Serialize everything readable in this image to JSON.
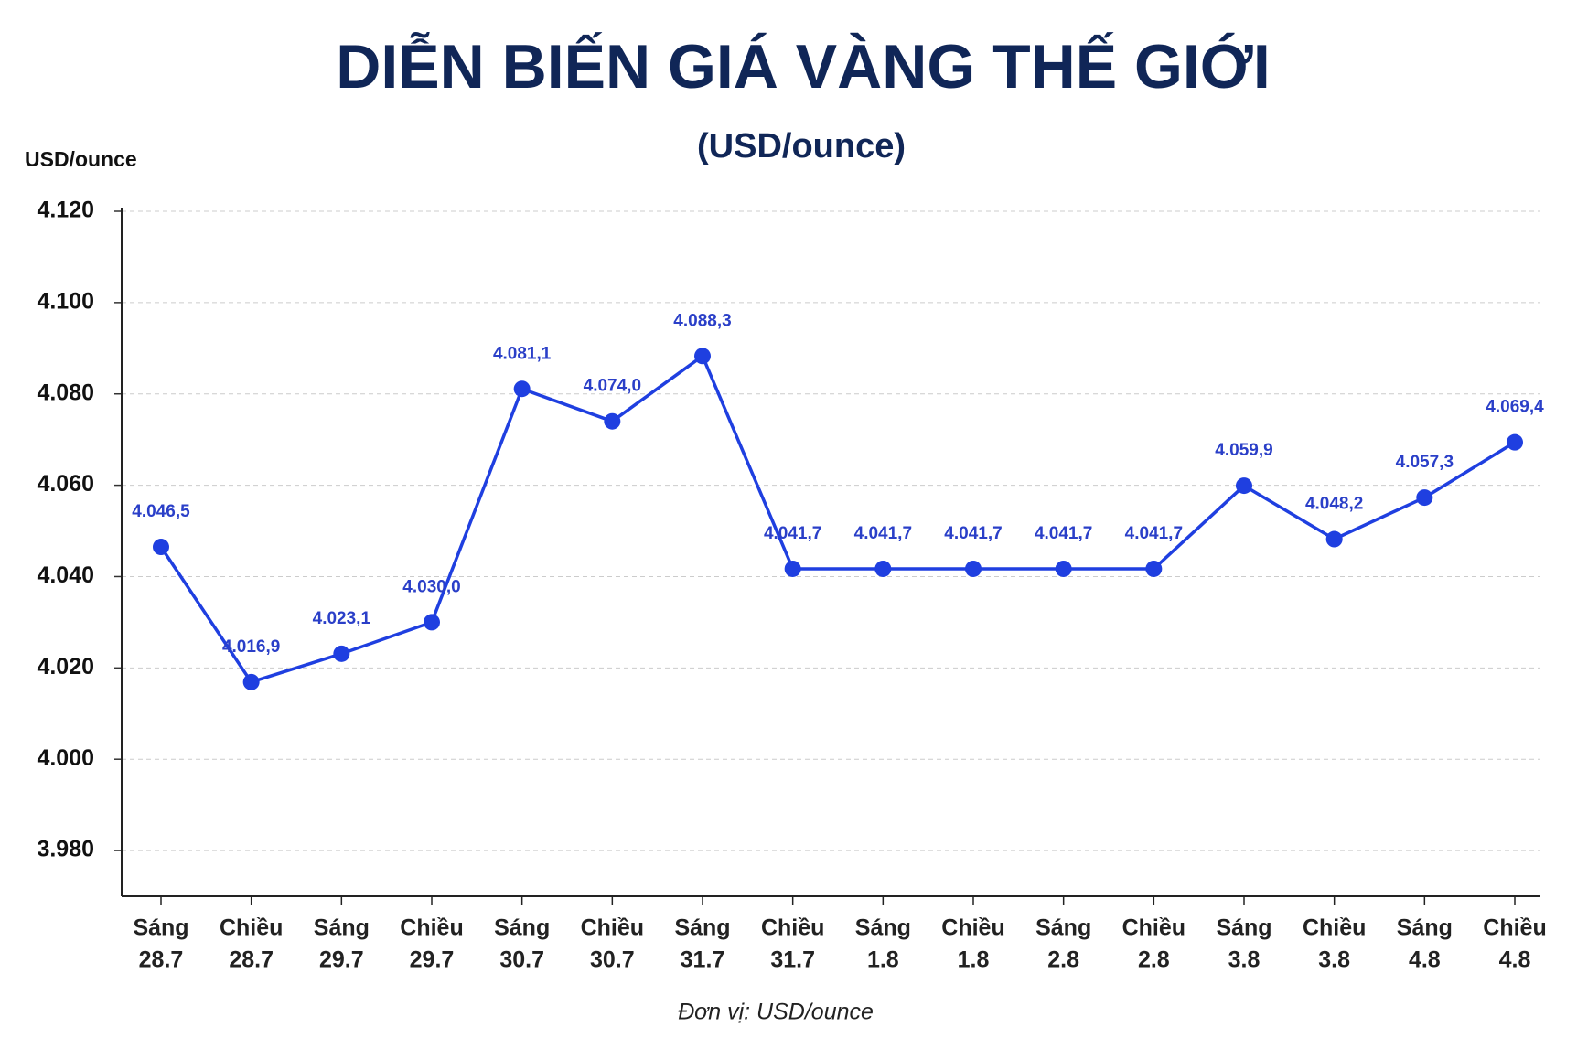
{
  "chart_data": {
    "type": "line",
    "title": "DIỄN BIẾN GIÁ VÀNG THẾ GIỚI",
    "subtitle": "(USD/ounce)",
    "y_label": "USD/ounce",
    "note": "Đơn vị: USD/ounce",
    "categories": [
      [
        "Sáng",
        "28.7"
      ],
      [
        "Chiều",
        "28.7"
      ],
      [
        "Sáng",
        "29.7"
      ],
      [
        "Chiều",
        "29.7"
      ],
      [
        "Sáng",
        "30.7"
      ],
      [
        "Chiều",
        "30.7"
      ],
      [
        "Sáng",
        "31.7"
      ],
      [
        "Chiều",
        "31.7"
      ],
      [
        "Sáng",
        "1.8"
      ],
      [
        "Chiều",
        "1.8"
      ],
      [
        "Sáng",
        "2.8"
      ],
      [
        "Chiều",
        "2.8"
      ],
      [
        "Sáng",
        "3.8"
      ],
      [
        "Chiều",
        "3.8"
      ],
      [
        "Sáng",
        "4.8"
      ],
      [
        "Chiều",
        "4.8"
      ]
    ],
    "series": [
      {
        "color": "#1f3fe0",
        "values": [
          4046.5,
          4016.9,
          4023.1,
          4030.0,
          4081.1,
          4074.0,
          4088.3,
          4041.7,
          4041.7,
          4041.7,
          4041.7,
          4041.7,
          4059.9,
          4048.2,
          4057.3,
          4069.4
        ],
        "value_labels": [
          "4.046,5",
          "4.016,9",
          "4.023,1",
          "4.030,0",
          "4.081,1",
          "4.074,0",
          "4.088,3",
          "4.041,7",
          "4.041,7",
          "4.041,7",
          "4.041,7",
          "4.041,7",
          "4.059,9",
          "4.048,2",
          "4.057,3",
          "4.069,4"
        ]
      }
    ],
    "ylim": [
      3970,
      4120
    ],
    "yticks": [
      {
        "value": 3980,
        "label": "3.980"
      },
      {
        "value": 4000,
        "label": "4.000"
      },
      {
        "value": 4020,
        "label": "4.020"
      },
      {
        "value": 4040,
        "label": "4.040"
      },
      {
        "value": 4060,
        "label": "4.060"
      },
      {
        "value": 4080,
        "label": "4.080"
      },
      {
        "value": 4100,
        "label": "4.100"
      },
      {
        "value": 4120,
        "label": "4.120"
      }
    ],
    "grid": true
  }
}
